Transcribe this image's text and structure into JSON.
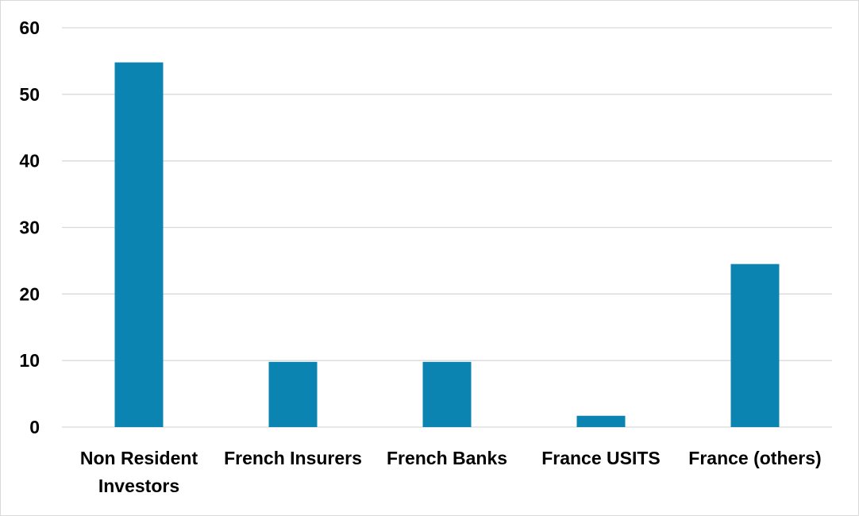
{
  "chart_data": {
    "type": "bar",
    "title": "",
    "xlabel": "",
    "ylabel": "",
    "categories": [
      [
        "Non Resident",
        "Investors"
      ],
      [
        "French Insurers"
      ],
      [
        "French Banks"
      ],
      [
        "France USITS"
      ],
      [
        "France (others)"
      ]
    ],
    "values": [
      54.8,
      9.8,
      9.8,
      1.7,
      24.5
    ],
    "ylim": [
      0,
      60
    ],
    "yticks": [
      "0",
      "10",
      "20",
      "30",
      "40",
      "50",
      "60"
    ],
    "bar_color": "#0b84b1",
    "gridlines": true,
    "legend": "none"
  }
}
